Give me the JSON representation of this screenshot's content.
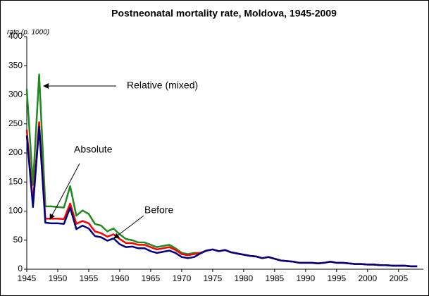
{
  "chart_data": {
    "type": "line",
    "title": "Postneonatal mortality rate, Moldova, 1945-2009",
    "y_label": "rate (p. 1000)",
    "x": [
      1945,
      1946,
      1947,
      1948,
      1949,
      1950,
      1951,
      1952,
      1953,
      1954,
      1955,
      1956,
      1957,
      1958,
      1959,
      1960,
      1961,
      1962,
      1963,
      1964,
      1965,
      1966,
      1967,
      1968,
      1969,
      1970,
      1971,
      1972,
      1973,
      1974,
      1975,
      1976,
      1977,
      1978,
      1979,
      1980,
      1981,
      1982,
      1983,
      1984,
      1985,
      1986,
      1987,
      1988,
      1989,
      1990,
      1991,
      1992,
      1993,
      1994,
      1995,
      1996,
      1997,
      1998,
      1999,
      2000,
      2001,
      2002,
      2003,
      2004,
      2005,
      2006,
      2007,
      2008
    ],
    "series": [
      {
        "name": "Relative (mixed)",
        "color": "#1f8a1f",
        "values": [
          310,
          145,
          335,
          108,
          108,
          107,
          106,
          143,
          92,
          101,
          95,
          78,
          75,
          65,
          70,
          60,
          52,
          50,
          46,
          46,
          42,
          38,
          40,
          42,
          36,
          28,
          26,
          28,
          28,
          32,
          34,
          31,
          33,
          29,
          27,
          25,
          23,
          22,
          19,
          21,
          18,
          15,
          14,
          13,
          11,
          11,
          11,
          10,
          11,
          13,
          11,
          11,
          10,
          9,
          9,
          8,
          8,
          7,
          7,
          6,
          6,
          6,
          5,
          5
        ]
      },
      {
        "name": "Absolute",
        "color": "#ff0000",
        "values": [
          240,
          115,
          253,
          87,
          87,
          87,
          86,
          113,
          78,
          83,
          79,
          65,
          62,
          56,
          60,
          52,
          45,
          45,
          42,
          42,
          38,
          34,
          36,
          38,
          33,
          26,
          24,
          26,
          28,
          32,
          34,
          31,
          33,
          29,
          27,
          25,
          23,
          22,
          19,
          21,
          18,
          15,
          14,
          13,
          11,
          11,
          11,
          10,
          11,
          13,
          11,
          11,
          10,
          9,
          9,
          8,
          8,
          7,
          7,
          6,
          6,
          6,
          5,
          5
        ]
      },
      {
        "name": "Before",
        "color": "#000080",
        "values": [
          230,
          107,
          245,
          80,
          79,
          79,
          78,
          106,
          69,
          75,
          70,
          57,
          55,
          49,
          53,
          43,
          38,
          39,
          36,
          36,
          31,
          28,
          30,
          32,
          28,
          21,
          19,
          21,
          27,
          32,
          34,
          31,
          33,
          29,
          27,
          25,
          23,
          22,
          19,
          21,
          18,
          15,
          14,
          13,
          11,
          11,
          11,
          10,
          11,
          13,
          11,
          11,
          10,
          9,
          9,
          8,
          8,
          7,
          7,
          6,
          6,
          6,
          5,
          5
        ]
      }
    ],
    "xlim": [
      1945,
      2009
    ],
    "xticks": [
      1945,
      1950,
      1955,
      1960,
      1965,
      1970,
      1975,
      1980,
      1985,
      1990,
      1995,
      2000,
      2005
    ],
    "ylim": [
      0,
      400
    ],
    "yticks": [
      0,
      50,
      100,
      150,
      200,
      250,
      300,
      350,
      400
    ],
    "grid": false
  }
}
